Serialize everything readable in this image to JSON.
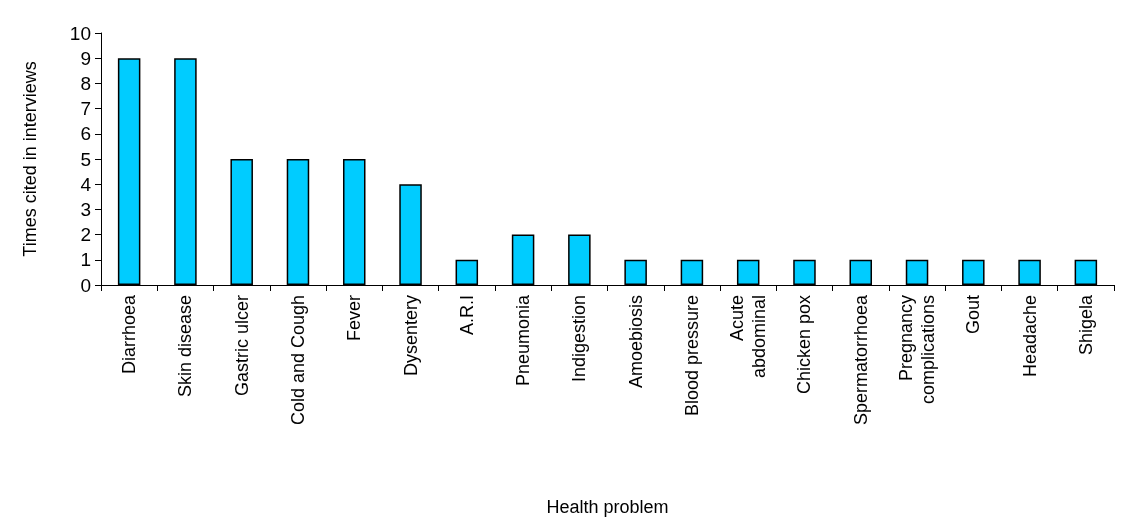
{
  "chart_data": {
    "type": "bar",
    "xlabel": "Health problem",
    "ylabel": "Times cited in interviews",
    "categories": [
      "Diarrhoea",
      "Skin disease",
      "Gastric ulcer",
      "Cold and Cough",
      "Fever",
      "Dysentery",
      "A.R.I",
      "Pneumonia",
      "Indigestion",
      "Amoebiosis",
      "Blood pressure",
      "Acute abdominal",
      "Chicken pox",
      "Spermatorrhoea",
      "Pregnancy complications",
      "Gout",
      "Headache",
      "Shigela"
    ],
    "values": [
      9,
      9,
      5,
      5,
      5,
      4,
      1,
      2,
      2,
      1,
      1,
      1,
      1,
      1,
      1,
      1,
      1,
      1
    ],
    "color": "#00ccff",
    "ylim": [
      0,
      10
    ],
    "yticks": [
      0,
      1,
      2,
      3,
      4,
      5,
      6,
      7,
      8,
      9,
      10
    ],
    "grid": false
  }
}
